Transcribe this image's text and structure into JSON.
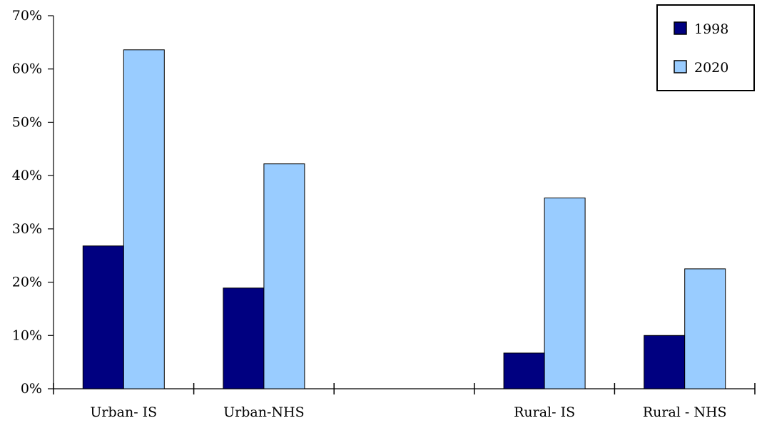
{
  "chart_data": {
    "type": "bar",
    "categories": [
      "Urban- IS",
      "Urban-NHS",
      "",
      "Rural- IS",
      "Rural - NHS"
    ],
    "series": [
      {
        "name": "1998",
        "values": [
          26.8,
          18.9,
          null,
          6.7,
          10.0
        ],
        "color": "#000080"
      },
      {
        "name": "2020",
        "values": [
          63.6,
          42.2,
          null,
          35.8,
          22.5
        ],
        "color": "#99ccff"
      }
    ],
    "yticks": [
      "0%",
      "10%",
      "20%",
      "30%",
      "40%",
      "50%",
      "60%",
      "70%"
    ],
    "ylim": [
      0,
      70
    ],
    "y_unit": "%",
    "grid": false,
    "legend_position": "top-right",
    "title": "",
    "xlabel": "",
    "ylabel": ""
  }
}
